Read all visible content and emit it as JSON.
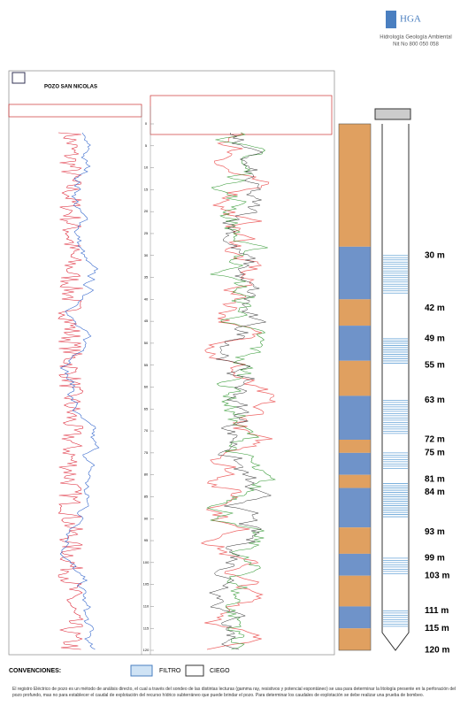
{
  "header": {
    "logo": "HGA",
    "subtitle": "Hidrología  Geología  Ambiental",
    "nit": "Nit No 800 050 058"
  },
  "log": {
    "title": "POZO SAN NICOLAS",
    "depth_range": [
      0,
      120
    ],
    "depth_ticks": [
      0,
      5,
      10,
      15,
      20,
      25,
      30,
      35,
      40,
      45,
      50,
      55,
      60,
      65,
      70,
      75,
      80,
      85,
      90,
      95,
      100,
      105,
      110,
      115,
      120
    ],
    "lithology": [
      {
        "from": 0,
        "to": 28,
        "color": "#e0a060"
      },
      {
        "from": 28,
        "to": 40,
        "color": "#6f93c9"
      },
      {
        "from": 40,
        "to": 46,
        "color": "#e0a060"
      },
      {
        "from": 46,
        "to": 54,
        "color": "#6f93c9"
      },
      {
        "from": 54,
        "to": 62,
        "color": "#e0a060"
      },
      {
        "from": 62,
        "to": 72,
        "color": "#6f93c9"
      },
      {
        "from": 72,
        "to": 75,
        "color": "#e0a060"
      },
      {
        "from": 75,
        "to": 80,
        "color": "#6f93c9"
      },
      {
        "from": 80,
        "to": 83,
        "color": "#e0a060"
      },
      {
        "from": 83,
        "to": 92,
        "color": "#6f93c9"
      },
      {
        "from": 92,
        "to": 98,
        "color": "#e0a060"
      },
      {
        "from": 98,
        "to": 103,
        "color": "#6f93c9"
      },
      {
        "from": 103,
        "to": 110,
        "color": "#e0a060"
      },
      {
        "from": 110,
        "to": 115,
        "color": "#6f93c9"
      },
      {
        "from": 115,
        "to": 120,
        "color": "#e0a060"
      }
    ],
    "filters": [
      [
        30,
        39
      ],
      [
        49,
        55
      ],
      [
        63,
        71
      ],
      [
        75,
        79
      ],
      [
        82,
        90
      ],
      [
        99,
        103
      ],
      [
        111,
        115
      ]
    ],
    "depth_marks": [
      {
        "value": 30,
        "label": "30 m"
      },
      {
        "value": 42,
        "label": "42 m"
      },
      {
        "value": 49,
        "label": "49 m"
      },
      {
        "value": 55,
        "label": "55 m"
      },
      {
        "value": 63,
        "label": "63 m"
      },
      {
        "value": 72,
        "label": "72 m"
      },
      {
        "value": 75,
        "label": "75 m"
      },
      {
        "value": 81,
        "label": "81 m"
      },
      {
        "value": 84,
        "label": "84 m"
      },
      {
        "value": 93,
        "label": "93 m"
      },
      {
        "value": 99,
        "label": "99 m"
      },
      {
        "value": 103,
        "label": "103 m"
      },
      {
        "value": 111,
        "label": "111 m"
      },
      {
        "value": 115,
        "label": "115 m"
      },
      {
        "value": 120,
        "label": "120 m"
      }
    ]
  },
  "legend": {
    "title": "CONVENCIONES:",
    "filter": "FILTRO",
    "blind": "CIEGO"
  },
  "note": "El registro Eléctrico de pozo es un método de análisis directo, el cual a través del sondeo de las distintas lecturas (gamma ray, resistivos y potencial espontáneo) se usa para determinar la litología presente en la perforación del pozo profundo, mas no para establecer el caudal de explotación del recurso hídrico subterráneo que puede brindar el pozo. Para determinar los caudales de explotación se debe realizar una prueba de bombeo."
}
